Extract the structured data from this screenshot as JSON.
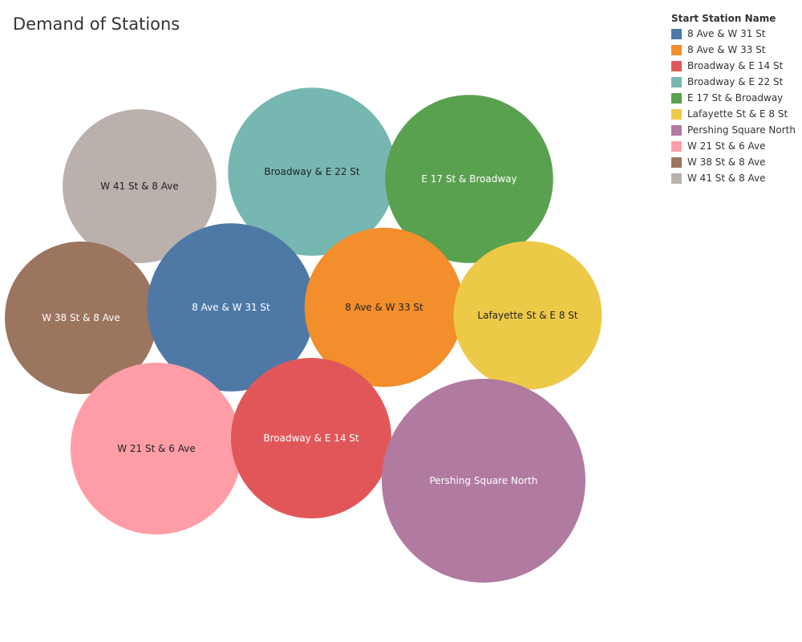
{
  "page": {
    "title": "Demand of Stations"
  },
  "legend": {
    "title": "Start Station Name",
    "items": [
      {
        "label": "8 Ave & W 31 St",
        "color": "#4e79a7"
      },
      {
        "label": "8 Ave & W 33 St",
        "color": "#f28e2b"
      },
      {
        "label": "Broadway & E 14 St",
        "color": "#e15759"
      },
      {
        "label": "Broadway & E 22 St",
        "color": "#76b7b2"
      },
      {
        "label": "E 17 St & Broadway",
        "color": "#59a14f"
      },
      {
        "label": "Lafayette St & E 8 St",
        "color": "#edc948"
      },
      {
        "label": "Pershing Square North",
        "color": "#b07aa1"
      },
      {
        "label": "W 21 St & 6 Ave",
        "color": "#ff9da7"
      },
      {
        "label": "W 38 St & 8 Ave",
        "color": "#9c755f"
      },
      {
        "label": "W 41 St & 8 Ave",
        "color": "#bab0ac"
      }
    ]
  },
  "chart_data": {
    "type": "bubble",
    "title": "Demand of Stations",
    "legend_title": "Start Station Name",
    "legend_position": "top-right",
    "bubbles": [
      {
        "name": "W 41 St & 8 Ave",
        "label": "W 41 St & 8 Ave",
        "color": "#bab0ac",
        "value": 0.57,
        "label_color": "#222222"
      },
      {
        "name": "Broadway & E 22 St",
        "label": "Broadway & E 22 St",
        "color": "#76b7b2",
        "value": 0.68,
        "label_color": "#222222"
      },
      {
        "name": "E 17 St & Broadway",
        "label": "E 17 St & Broadway",
        "color": "#59a14f",
        "value": 0.68,
        "label_color": "#ffffff"
      },
      {
        "name": "W 38 St & 8 Ave",
        "label": "W 38 St & 8 Ave",
        "color": "#9c755f",
        "value": 0.56,
        "label_color": "#ffffff"
      },
      {
        "name": "8 Ave & W 31 St",
        "label": "8 Ave & W 31 St",
        "color": "#4e79a7",
        "value": 0.68,
        "label_color": "#ffffff"
      },
      {
        "name": "8 Ave & W 33 St",
        "label": "8 Ave & W 33 St",
        "color": "#f28e2b",
        "value": 0.61,
        "label_color": "#222222"
      },
      {
        "name": "Lafayette St & E 8 St",
        "label": "Lafayette St & E 8 St",
        "color": "#edc948",
        "value": 0.53,
        "label_color": "#222222"
      },
      {
        "name": "W 21 St & 6 Ave",
        "label": "W 21 St & 6 Ave",
        "color": "#ff9da7",
        "value": 0.71,
        "label_color": "#222222"
      },
      {
        "name": "Broadway & E 14 St",
        "label": "Broadway & E 14 St",
        "color": "#e15759",
        "value": 0.62,
        "label_color": "#ffffff"
      },
      {
        "name": "Pershing Square North",
        "label": "Pershing Square North",
        "color": "#b07aa1",
        "value": 1.0,
        "label_color": "#ffffff"
      }
    ]
  }
}
